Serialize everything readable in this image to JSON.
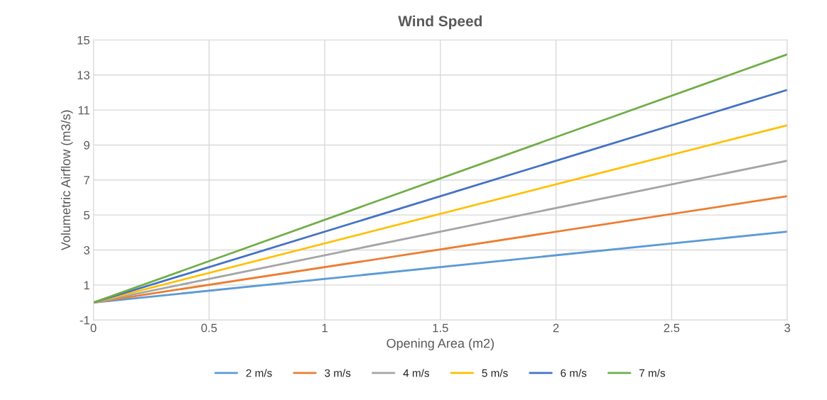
{
  "chart_data": {
    "type": "line",
    "title": "Wind Speed",
    "xlabel": "Opening Area (m2)",
    "ylabel": "Volumetric Airflow (m3/s)",
    "x": [
      0,
      3
    ],
    "series": [
      {
        "name": "2 m/s",
        "color": "#5b9bd5",
        "values": [
          0,
          4.05
        ]
      },
      {
        "name": "3 m/s",
        "color": "#ed7d31",
        "values": [
          0,
          6.07
        ]
      },
      {
        "name": "4 m/s",
        "color": "#a5a5a5",
        "values": [
          0,
          8.1
        ]
      },
      {
        "name": "5 m/s",
        "color": "#ffc000",
        "values": [
          0,
          10.13
        ]
      },
      {
        "name": "6 m/s",
        "color": "#4472c4",
        "values": [
          0,
          12.15
        ]
      },
      {
        "name": "7 m/s",
        "color": "#70ad47",
        "values": [
          0,
          14.18
        ]
      }
    ],
    "xlim": [
      0,
      3
    ],
    "xticks": [
      0,
      0.5,
      1,
      1.5,
      2,
      2.5,
      3
    ],
    "ylim": [
      -1,
      15
    ],
    "yticks": [
      -1,
      1,
      3,
      5,
      7,
      9,
      11,
      13,
      15
    ],
    "grid": true,
    "legend": "bottom",
    "marker": "none",
    "line_style": "solid"
  }
}
